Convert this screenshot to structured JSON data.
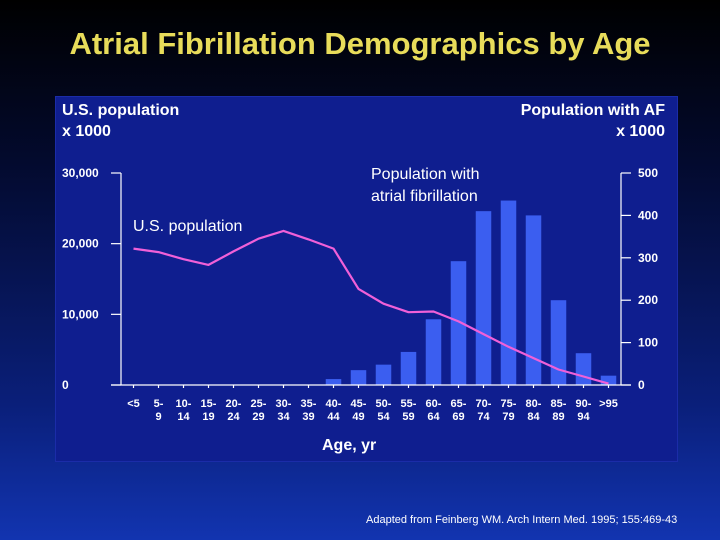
{
  "title": "Atrial Fibrillation Demographics by Age",
  "source": "Adapted from Feinberg WM. Arch Intern Med. 1995; 155:469-43",
  "colors": {
    "bar": "#3b5ef0",
    "line": "#f060d8",
    "title": "#e8dc5a",
    "panel": "#0f1e8f"
  },
  "chart_data": {
    "type": "bar",
    "categories": [
      [
        "<5",
        ""
      ],
      [
        "5-",
        "9"
      ],
      [
        "10-",
        "14"
      ],
      [
        "15-",
        "19"
      ],
      [
        "20-",
        "24"
      ],
      [
        "25-",
        "29"
      ],
      [
        "30-",
        "34"
      ],
      [
        "35-",
        "39"
      ],
      [
        "40-",
        "44"
      ],
      [
        "45-",
        "49"
      ],
      [
        "50-",
        "54"
      ],
      [
        "55-",
        "59"
      ],
      [
        "60-",
        "64"
      ],
      [
        "65-",
        "69"
      ],
      [
        "70-",
        "74"
      ],
      [
        "75-",
        "79"
      ],
      [
        "80-",
        "84"
      ],
      [
        "85-",
        "89"
      ],
      [
        "90-",
        "94"
      ],
      [
        ">95",
        ""
      ]
    ],
    "xlabel": "Age, yr",
    "left_axis": {
      "label_line1": "U.S. population",
      "label_line2": "x 1000",
      "ylim": [
        0,
        30000
      ],
      "ticks": [
        0,
        10000,
        20000,
        30000
      ],
      "tick_labels": [
        "0",
        "10,000",
        "20,000",
        "30,000"
      ]
    },
    "right_axis": {
      "label_line1": "Population with AF",
      "label_line2": "x 1000",
      "ylim": [
        0,
        500
      ],
      "ticks": [
        0,
        100,
        200,
        300,
        400,
        500
      ],
      "tick_labels": [
        "0",
        "100",
        "200",
        "300",
        "400",
        "500"
      ]
    },
    "series": [
      {
        "name": "Population with atrial fibrillation",
        "name_line1": "Population with",
        "name_line2": "atrial fibrillation",
        "type": "bar",
        "axis": "right",
        "values": [
          0,
          0,
          0,
          0,
          0,
          0,
          0,
          0,
          14,
          35,
          48,
          78,
          155,
          292,
          410,
          435,
          400,
          200,
          75,
          22
        ]
      },
      {
        "name": "U.S. population",
        "type": "line",
        "axis": "left",
        "values": [
          19300,
          18800,
          17800,
          17000,
          18900,
          20700,
          21800,
          20600,
          19300,
          13600,
          11500,
          10300,
          10400,
          9000,
          7200,
          5400,
          3800,
          2200,
          1200,
          200
        ]
      }
    ]
  }
}
